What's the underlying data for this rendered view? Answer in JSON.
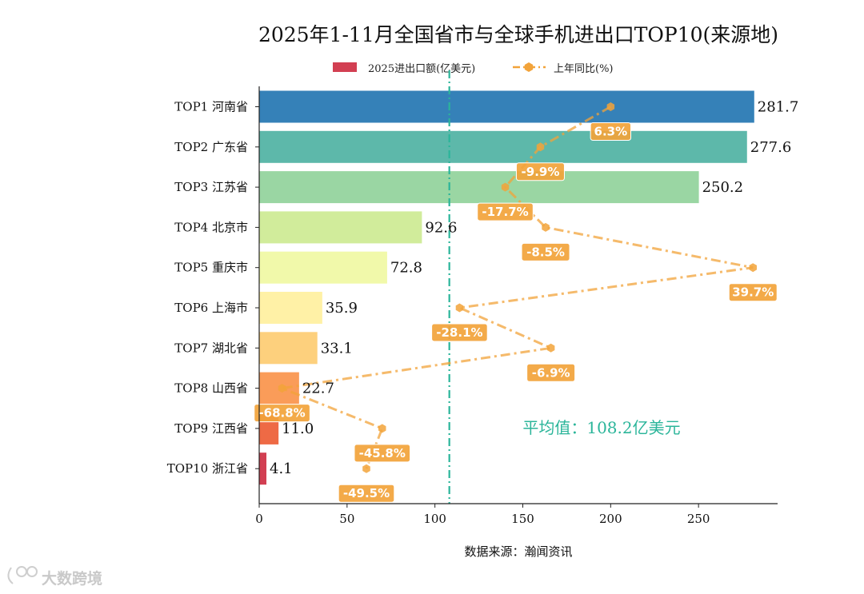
{
  "chart_data": {
    "type": "bar",
    "orientation": "horizontal",
    "title": "2025年1-11月全国省市与全球手机进出口TOP10(来源地)",
    "xlabel": "数据来源：瀚闻资讯",
    "ylabel": "",
    "xlim": [
      0,
      295
    ],
    "xticks": [
      0,
      50,
      100,
      150,
      200,
      250
    ],
    "categories": [
      "TOP1 河南省",
      "TOP2 广东省",
      "TOP3 江苏省",
      "TOP4 北京市",
      "TOP5 重庆市",
      "TOP6 上海市",
      "TOP7 湖北省",
      "TOP8 山西省",
      "TOP9 江西省",
      "TOP10 浙江省"
    ],
    "series": [
      {
        "name": "2025进出口额(亿美元)",
        "values": [
          281.7,
          277.6,
          250.2,
          92.6,
          72.8,
          35.9,
          33.1,
          22.7,
          11.0,
          4.1
        ],
        "value_labels": [
          "281.7",
          "277.6",
          "250.2",
          "92.6",
          "72.8",
          "35.9",
          "33.1",
          "22.7",
          "11.0",
          "4.1"
        ],
        "colors": [
          "#3581b8",
          "#5db8aa",
          "#9ad6a3",
          "#d1ec9b",
          "#f1f9aa",
          "#fff1a6",
          "#fdd07d",
          "#fa9c59",
          "#ee6a45",
          "#d23f52"
        ]
      },
      {
        "name": "上年同比(%)",
        "type": "line",
        "values": [
          6.3,
          -9.9,
          -17.7,
          -8.5,
          39.7,
          -28.1,
          -6.9,
          -68.8,
          -45.8,
          -49.5
        ],
        "value_labels": [
          "6.3%",
          "-9.9%",
          "-17.7%",
          "-8.5%",
          "39.7%",
          "-28.1%",
          "-6.9%",
          "-68.8%",
          "-45.8%",
          "-49.5%"
        ],
        "plot_x": [
          200,
          160,
          140,
          163,
          281,
          114,
          166,
          13,
          70,
          61
        ],
        "color": "#f2a33a"
      }
    ],
    "average": {
      "value": 108.2,
      "label": "平均值：108.2亿美元",
      "color": "#2bb59a"
    },
    "legend": {
      "placement": "top-center",
      "bar_label": "2025进出口额(亿美元)",
      "line_label": "上年同比(%)",
      "bar_swatch_color": "#d23f52"
    }
  },
  "watermark": {
    "logo_text": "大数跨境"
  }
}
